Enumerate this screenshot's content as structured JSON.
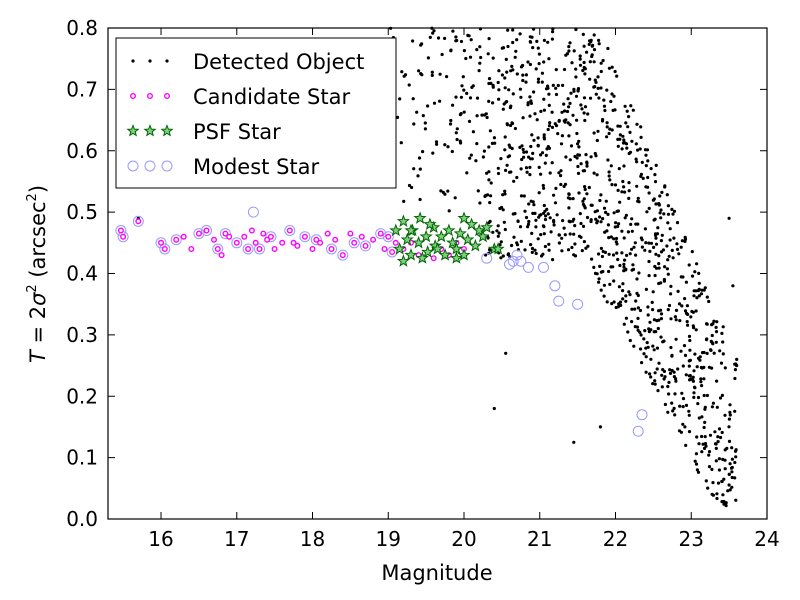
{
  "chart_data": {
    "type": "scatter",
    "xlabel": "Magnitude",
    "ylabel_var": "T",
    "ylabel_eq": " = 2",
    "ylabel_sigma": "σ",
    "ylabel_sup": "2",
    "ylabel_unit": " (arcsec",
    "ylabel_unit_sup": "2",
    "ylabel_close": ")",
    "xlim": [
      15.3,
      24.0
    ],
    "ylim": [
      0.0,
      0.8
    ],
    "xticks": [
      "16",
      "17",
      "18",
      "19",
      "20",
      "21",
      "22",
      "23",
      "24"
    ],
    "yticks": [
      "0.0",
      "0.1",
      "0.2",
      "0.3",
      "0.4",
      "0.5",
      "0.6",
      "0.7",
      "0.8"
    ],
    "legend_position": "top-left",
    "legend": [
      {
        "label": "Detected Object",
        "marker": "dot",
        "color": "#000000"
      },
      {
        "label": "Candidate Star",
        "marker": "small-circle",
        "color": "#ff00ff"
      },
      {
        "label": "PSF Star",
        "marker": "star",
        "color": "#008000"
      },
      {
        "label": "Modest Star",
        "marker": "open-circle",
        "color": "#9999ff"
      }
    ],
    "series": [
      {
        "name": "Candidate Star",
        "points": [
          [
            15.47,
            0.47
          ],
          [
            15.5,
            0.46
          ],
          [
            15.7,
            0.485
          ],
          [
            16.0,
            0.45
          ],
          [
            16.05,
            0.44
          ],
          [
            16.2,
            0.455
          ],
          [
            16.3,
            0.46
          ],
          [
            16.4,
            0.44
          ],
          [
            16.5,
            0.465
          ],
          [
            16.6,
            0.47
          ],
          [
            16.7,
            0.455
          ],
          [
            16.75,
            0.44
          ],
          [
            16.8,
            0.43
          ],
          [
            16.85,
            0.465
          ],
          [
            16.9,
            0.46
          ],
          [
            17.0,
            0.45
          ],
          [
            17.1,
            0.46
          ],
          [
            17.15,
            0.44
          ],
          [
            17.2,
            0.47
          ],
          [
            17.25,
            0.45
          ],
          [
            17.3,
            0.44
          ],
          [
            17.35,
            0.465
          ],
          [
            17.4,
            0.455
          ],
          [
            17.45,
            0.46
          ],
          [
            17.5,
            0.44
          ],
          [
            17.6,
            0.45
          ],
          [
            17.7,
            0.47
          ],
          [
            17.75,
            0.45
          ],
          [
            17.8,
            0.445
          ],
          [
            17.9,
            0.46
          ],
          [
            18.0,
            0.44
          ],
          [
            18.05,
            0.455
          ],
          [
            18.1,
            0.45
          ],
          [
            18.2,
            0.465
          ],
          [
            18.25,
            0.44
          ],
          [
            18.3,
            0.455
          ],
          [
            18.4,
            0.43
          ],
          [
            18.5,
            0.465
          ],
          [
            18.55,
            0.45
          ],
          [
            18.65,
            0.46
          ],
          [
            18.7,
            0.445
          ],
          [
            18.8,
            0.455
          ],
          [
            18.9,
            0.465
          ],
          [
            18.95,
            0.44
          ],
          [
            19.0,
            0.46
          ],
          [
            19.05,
            0.435
          ],
          [
            19.1,
            0.45
          ],
          [
            19.2,
            0.44
          ],
          [
            19.3,
            0.45
          ],
          [
            19.4,
            0.43
          ],
          [
            19.5,
            0.46
          ],
          [
            19.6,
            0.425
          ],
          [
            19.7,
            0.44
          ],
          [
            19.8,
            0.43
          ],
          [
            19.9,
            0.45
          ],
          [
            20.0,
            0.44
          ]
        ]
      },
      {
        "name": "PSF Star",
        "points": [
          [
            19.1,
            0.47
          ],
          [
            19.15,
            0.44
          ],
          [
            19.2,
            0.485
          ],
          [
            19.25,
            0.455
          ],
          [
            19.3,
            0.43
          ],
          [
            19.32,
            0.47
          ],
          [
            19.4,
            0.45
          ],
          [
            19.42,
            0.49
          ],
          [
            19.5,
            0.46
          ],
          [
            19.52,
            0.435
          ],
          [
            19.6,
            0.475
          ],
          [
            19.62,
            0.445
          ],
          [
            19.7,
            0.46
          ],
          [
            19.75,
            0.43
          ],
          [
            19.8,
            0.47
          ],
          [
            19.85,
            0.45
          ],
          [
            19.9,
            0.44
          ],
          [
            19.95,
            0.465
          ],
          [
            20.0,
            0.49
          ],
          [
            20.05,
            0.455
          ],
          [
            20.1,
            0.48
          ],
          [
            20.15,
            0.445
          ],
          [
            20.2,
            0.47
          ],
          [
            20.25,
            0.46
          ],
          [
            20.3,
            0.475
          ],
          [
            20.4,
            0.44
          ],
          [
            20.45,
            0.44
          ],
          [
            19.2,
            0.42
          ],
          [
            19.45,
            0.425
          ],
          [
            19.65,
            0.44
          ],
          [
            19.3,
            0.47
          ],
          [
            19.55,
            0.48
          ],
          [
            19.9,
            0.425
          ],
          [
            20.0,
            0.43
          ]
        ]
      },
      {
        "name": "Modest Star",
        "points": [
          [
            15.47,
            0.47
          ],
          [
            15.5,
            0.46
          ],
          [
            15.7,
            0.485
          ],
          [
            16.0,
            0.45
          ],
          [
            16.05,
            0.44
          ],
          [
            16.2,
            0.455
          ],
          [
            16.5,
            0.465
          ],
          [
            16.6,
            0.47
          ],
          [
            16.75,
            0.44
          ],
          [
            16.85,
            0.465
          ],
          [
            17.0,
            0.45
          ],
          [
            17.15,
            0.44
          ],
          [
            17.22,
            0.5
          ],
          [
            17.3,
            0.44
          ],
          [
            17.45,
            0.46
          ],
          [
            17.7,
            0.47
          ],
          [
            17.9,
            0.46
          ],
          [
            18.05,
            0.455
          ],
          [
            18.25,
            0.44
          ],
          [
            18.4,
            0.43
          ],
          [
            18.55,
            0.45
          ],
          [
            18.7,
            0.445
          ],
          [
            18.9,
            0.465
          ],
          [
            19.0,
            0.46
          ],
          [
            19.05,
            0.435
          ],
          [
            20.3,
            0.425
          ],
          [
            20.6,
            0.415
          ],
          [
            20.65,
            0.42
          ],
          [
            20.7,
            0.43
          ],
          [
            20.75,
            0.42
          ],
          [
            20.85,
            0.41
          ],
          [
            21.05,
            0.41
          ],
          [
            21.2,
            0.38
          ],
          [
            21.25,
            0.355
          ],
          [
            21.5,
            0.35
          ],
          [
            22.3,
            0.143
          ],
          [
            22.35,
            0.17
          ]
        ]
      }
    ],
    "detected_object_seed": 7
  }
}
